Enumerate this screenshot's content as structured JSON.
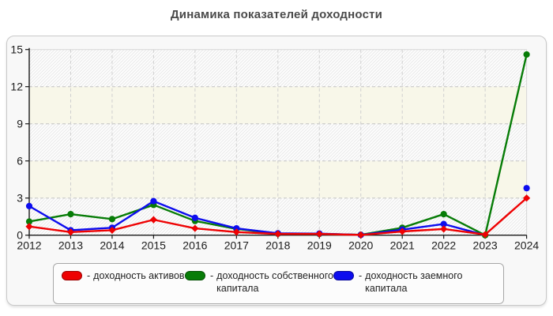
{
  "title": "Динамика показателей доходности",
  "chart_data": {
    "type": "line",
    "title": "Динамика показателей доходности",
    "x": [
      2012,
      2013,
      2014,
      2015,
      2016,
      2017,
      2018,
      2019,
      2020,
      2021,
      2022,
      2023,
      2024
    ],
    "ylim": [
      0,
      15
    ],
    "yticks": [
      0,
      3,
      6,
      9,
      12,
      15
    ],
    "grid": "dashed horizontal and vertical gridlines",
    "background_bands": "alternating diagonal-hatched and pale-cream bands every 3 units",
    "legend_position": "bottom",
    "series": [
      {
        "name": "доходность активов",
        "color": "#ee0203",
        "marker": "diamond",
        "values": [
          0.7,
          0.25,
          0.4,
          1.25,
          0.55,
          0.25,
          0.1,
          0.1,
          0.02,
          0.3,
          0.5,
          0.05,
          3.0
        ]
      },
      {
        "name": "доходность собственного капитала",
        "color": "#077c07",
        "marker": "circle",
        "values": [
          1.1,
          1.7,
          1.3,
          2.45,
          1.15,
          0.5,
          0.12,
          0.1,
          0.03,
          0.6,
          1.7,
          0.0,
          14.6
        ]
      },
      {
        "name": "доходность заемного капитала",
        "color": "#0d0dee",
        "marker": "circle",
        "values": [
          2.35,
          0.4,
          0.6,
          2.75,
          1.4,
          0.55,
          0.15,
          0.13,
          0.02,
          0.45,
          0.9,
          0.0,
          3.8
        ],
        "line_gap_after_index": 11,
        "hide_marker_indices": [
          11
        ]
      }
    ]
  },
  "legend": {
    "separator": "-",
    "items": [
      {
        "label": "доходность активов"
      },
      {
        "label": "доходность собственного капитала"
      },
      {
        "label": "доходность заемного капитала"
      }
    ]
  },
  "colors": {
    "title_text": "#4a4a4a",
    "axis_text": "#1c1c1c",
    "panel_bg": "#f8f8f8",
    "band_cream": "#f8f7e9",
    "band_hatch_line": "#e7e7e7",
    "gridline": "#c3c3c3",
    "series_red": "#ee0203",
    "series_green": "#077c07",
    "series_blue": "#0d0dee"
  }
}
